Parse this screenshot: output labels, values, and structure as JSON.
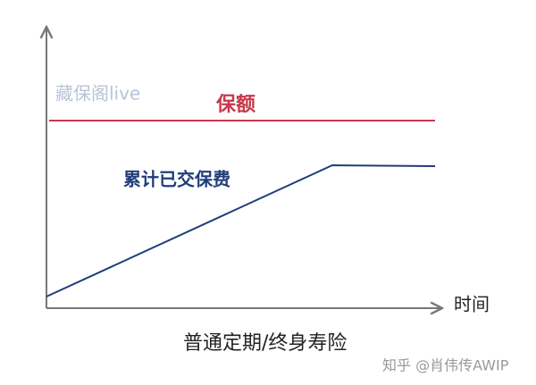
{
  "watermark": "藏保阁live",
  "lines": {
    "sum_insured": "保额",
    "premiums_paid": "累计已交保费"
  },
  "x_axis_label": "时间",
  "caption": "普通定期/终身寿险",
  "source": "知乎 @肖伟传AWIP"
}
